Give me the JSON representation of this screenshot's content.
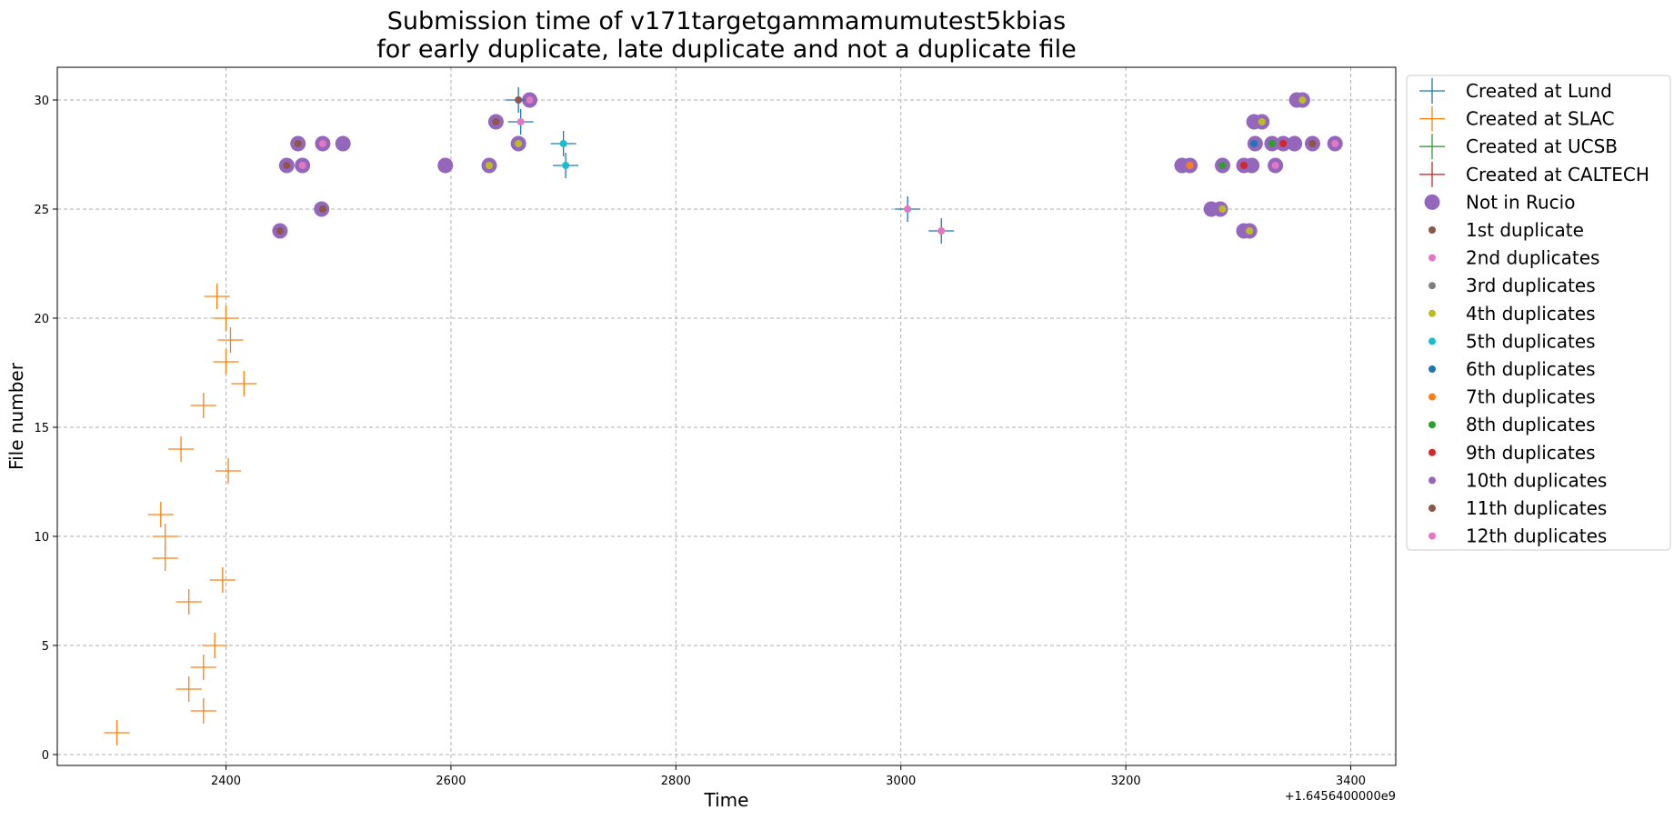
{
  "chart_data": {
    "type": "scatter",
    "title": [
      "Submission time of v171targetgammamumutest5kbias",
      "for early duplicate, late duplicate and not a duplicate file"
    ],
    "xlabel": "Time",
    "ylabel": "File number",
    "x_offset_label": "+1.6456400000e9",
    "xlim": [
      2250,
      3440
    ],
    "ylim": [
      -0.5,
      31.5
    ],
    "xticks": [
      2400,
      2600,
      2800,
      3000,
      3200,
      3400
    ],
    "yticks": [
      0,
      5,
      10,
      15,
      20,
      25,
      30
    ],
    "grid": true,
    "legend_position": "outside-right",
    "colors": {
      "blue": "#1f77b4",
      "orange": "#ff7f0e",
      "green": "#2ca02c",
      "red": "#d62728",
      "purple": "#9467bd",
      "brown": "#8c564b",
      "pink": "#e377c2",
      "gray": "#7f7f7f",
      "olive": "#bcbd22",
      "cyan": "#17becf"
    },
    "series": [
      {
        "name": "Created at Lund",
        "marker": "plus",
        "color": "#1f77b4",
        "points": [
          [
            2660,
            30
          ],
          [
            2662,
            29
          ],
          [
            2700,
            28
          ],
          [
            2702,
            27
          ],
          [
            3006,
            25
          ],
          [
            3036,
            24
          ]
        ]
      },
      {
        "name": "Created at SLAC",
        "marker": "plus",
        "color": "#ff7f0e",
        "points": [
          [
            2303,
            1
          ],
          [
            2380,
            2
          ],
          [
            2367,
            3
          ],
          [
            2380,
            4
          ],
          [
            2390,
            5
          ],
          [
            2397,
            8
          ],
          [
            2367,
            7
          ],
          [
            2346,
            9
          ],
          [
            2346,
            10
          ],
          [
            2342,
            11
          ],
          [
            2402,
            13
          ],
          [
            2360,
            14
          ],
          [
            2380,
            16
          ],
          [
            2416,
            17
          ],
          [
            2400,
            18
          ],
          [
            2404,
            19
          ],
          [
            2400,
            20
          ],
          [
            2392,
            21
          ]
        ]
      },
      {
        "name": "Created at UCSB",
        "marker": "plus",
        "color": "#2ca02c",
        "points": []
      },
      {
        "name": "Created at CALTECH",
        "marker": "plus",
        "color": "#d62728",
        "points": []
      },
      {
        "name": "Not in Rucio",
        "marker": "bigdot",
        "color": "#9467bd",
        "points": [
          [
            2448,
            24
          ],
          [
            2454,
            27
          ],
          [
            2464,
            28
          ],
          [
            2468,
            27
          ],
          [
            2485,
            25
          ],
          [
            2486,
            28
          ],
          [
            2504,
            28
          ],
          [
            2595,
            27
          ],
          [
            2634,
            27
          ],
          [
            2640,
            29
          ],
          [
            2660,
            28
          ],
          [
            2670,
            30
          ],
          [
            3250,
            27
          ],
          [
            3257,
            27
          ],
          [
            3276,
            25
          ],
          [
            3284,
            25
          ],
          [
            3286,
            27
          ],
          [
            3305,
            27
          ],
          [
            3305,
            24
          ],
          [
            3312,
            27
          ],
          [
            3310,
            24
          ],
          [
            3314,
            29
          ],
          [
            3315,
            28
          ],
          [
            3321,
            29
          ],
          [
            3330,
            28
          ],
          [
            3333,
            27
          ],
          [
            3340,
            28
          ],
          [
            3350,
            28
          ],
          [
            3352,
            30
          ],
          [
            3357,
            30
          ],
          [
            3366,
            28
          ],
          [
            3386,
            28
          ]
        ]
      },
      {
        "name": "1st duplicate",
        "marker": "dot",
        "color": "#8c564b",
        "points": [
          [
            2448,
            24
          ],
          [
            2454,
            27
          ],
          [
            2486,
            25
          ],
          [
            2640,
            29
          ],
          [
            2660,
            30
          ]
        ]
      },
      {
        "name": "2nd duplicates",
        "marker": "dot",
        "color": "#e377c2",
        "points": [
          [
            2486,
            28
          ],
          [
            2662,
            29
          ],
          [
            2670,
            30
          ],
          [
            3006,
            25
          ],
          [
            3036,
            24
          ],
          [
            3257,
            27
          ],
          [
            3333,
            27
          ],
          [
            3386,
            28
          ]
        ]
      },
      {
        "name": "3rd duplicates",
        "marker": "dot",
        "color": "#7f7f7f",
        "points": []
      },
      {
        "name": "4th duplicates",
        "marker": "dot",
        "color": "#bcbd22",
        "points": [
          [
            2634,
            27
          ],
          [
            2660,
            28
          ],
          [
            3286,
            25
          ],
          [
            3310,
            24
          ],
          [
            3321,
            29
          ],
          [
            3357,
            30
          ]
        ]
      },
      {
        "name": "5th duplicates",
        "marker": "dot",
        "color": "#17becf",
        "points": [
          [
            2700,
            28
          ],
          [
            2702,
            27
          ]
        ]
      },
      {
        "name": "6th duplicates",
        "marker": "dot",
        "color": "#1f77b4",
        "points": [
          [
            3314,
            28
          ]
        ]
      },
      {
        "name": "7th duplicates",
        "marker": "dot",
        "color": "#ff7f0e",
        "points": [
          [
            3257,
            27
          ]
        ]
      },
      {
        "name": "8th duplicates",
        "marker": "dot",
        "color": "#2ca02c",
        "points": [
          [
            3286,
            27
          ],
          [
            3330,
            28
          ]
        ]
      },
      {
        "name": "9th duplicates",
        "marker": "dot",
        "color": "#d62728",
        "points": [
          [
            3305,
            27
          ],
          [
            3340,
            28
          ]
        ]
      },
      {
        "name": "10th duplicates",
        "marker": "dot",
        "color": "#9467bd",
        "points": []
      },
      {
        "name": "11th duplicates",
        "marker": "dot",
        "color": "#8c564b",
        "points": [
          [
            2464,
            28
          ],
          [
            3366,
            28
          ]
        ]
      },
      {
        "name": "12th duplicates",
        "marker": "dot",
        "color": "#e377c2",
        "points": [
          [
            2468,
            27
          ]
        ]
      }
    ]
  }
}
